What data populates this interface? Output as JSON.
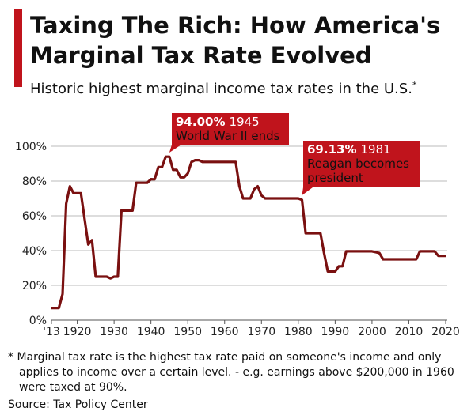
{
  "chart_data": {
    "type": "line",
    "title": [
      "Taxing The Rich: How America's",
      "Marginal Tax Rate Evolved"
    ],
    "subtitle": "Historic highest marginal income tax rates in the U.S.",
    "subtitle_mark": "*",
    "x": [
      1913,
      1914,
      1915,
      1916,
      1917,
      1918,
      1919,
      1920,
      1921,
      1922,
      1923,
      1924,
      1925,
      1926,
      1927,
      1928,
      1929,
      1930,
      1931,
      1932,
      1933,
      1934,
      1935,
      1936,
      1937,
      1938,
      1939,
      1940,
      1941,
      1942,
      1943,
      1944,
      1945,
      1946,
      1947,
      1948,
      1949,
      1950,
      1951,
      1952,
      1953,
      1954,
      1955,
      1956,
      1957,
      1958,
      1959,
      1960,
      1961,
      1962,
      1963,
      1964,
      1965,
      1966,
      1967,
      1968,
      1969,
      1970,
      1971,
      1972,
      1973,
      1974,
      1975,
      1976,
      1977,
      1978,
      1979,
      1980,
      1981,
      1982,
      1983,
      1984,
      1985,
      1986,
      1987,
      1988,
      1989,
      1990,
      1991,
      1992,
      1993,
      1994,
      1995,
      1996,
      1997,
      1998,
      1999,
      2000,
      2001,
      2002,
      2003,
      2004,
      2005,
      2006,
      2007,
      2008,
      2009,
      2010,
      2011,
      2012,
      2013,
      2014,
      2015,
      2016,
      2017,
      2018,
      2019,
      2020
    ],
    "values": [
      7,
      7,
      7,
      15,
      67,
      77,
      73,
      73,
      73,
      58,
      43.5,
      46,
      25,
      25,
      25,
      25,
      24,
      25,
      25,
      63,
      63,
      63,
      63,
      79,
      79,
      79,
      79,
      81.1,
      81,
      88,
      88,
      94,
      94,
      86.45,
      86.45,
      82.13,
      82.13,
      84.36,
      91,
      92,
      92,
      91,
      91,
      91,
      91,
      91,
      91,
      91,
      91,
      91,
      91,
      77,
      70,
      70,
      70,
      75.25,
      77,
      71.75,
      70,
      70,
      70,
      70,
      70,
      70,
      70,
      70,
      70,
      70,
      69.13,
      50,
      50,
      50,
      50,
      50,
      38.5,
      28,
      28,
      28,
      31,
      31,
      39.6,
      39.6,
      39.6,
      39.6,
      39.6,
      39.6,
      39.6,
      39.6,
      39.1,
      38.6,
      35,
      35,
      35,
      35,
      35,
      35,
      35,
      35,
      35,
      35,
      39.6,
      39.6,
      39.6,
      39.6,
      39.6,
      37,
      37,
      37
    ],
    "color": "#7a1010",
    "xlim": [
      1913,
      2020
    ],
    "xticks": [
      {
        "value": 1913,
        "label": "'13"
      },
      1920,
      1930,
      1940,
      1950,
      1960,
      1970,
      1980,
      1990,
      2000,
      2010,
      2020
    ],
    "ylim": [
      0,
      100
    ],
    "yticks": [
      {
        "value": 0,
        "label": "0%"
      },
      {
        "value": 20,
        "label": "20%"
      },
      {
        "value": 40,
        "label": "40%"
      },
      {
        "value": 60,
        "label": "60%"
      },
      {
        "value": 80,
        "label": "80%"
      },
      {
        "value": 100,
        "label": "100%"
      }
    ],
    "grid": true,
    "annotations": [
      {
        "label": "94.00%",
        "year": "1945",
        "text": [
          "World War II ends"
        ]
      },
      {
        "label": "69.13%",
        "year": "1981",
        "text": [
          "Reagan becomes",
          "president"
        ]
      }
    ],
    "annotation_color": "#c0141c",
    "footnote": [
      "* Marginal tax rate is the highest tax rate paid on someone's income and only",
      "applies to income over a certain level. - e.g. earnings above $200,000 in 1960",
      "were taxed at 90%."
    ],
    "source": "Source: Tax Policy Center"
  }
}
